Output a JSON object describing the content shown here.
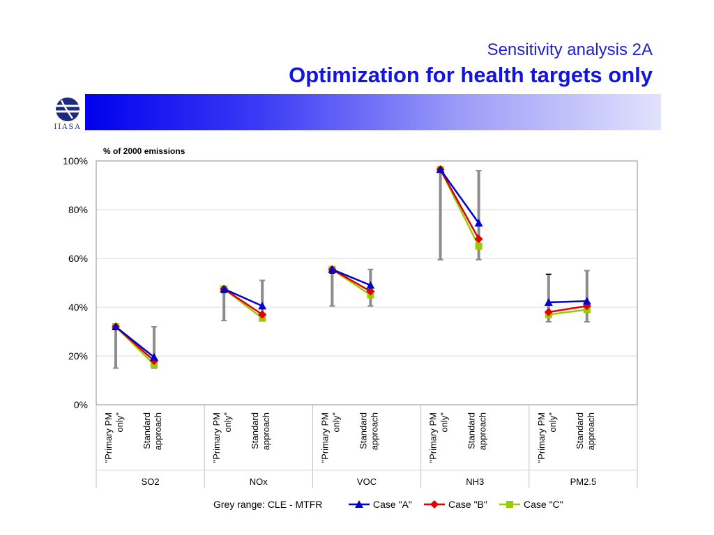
{
  "header": {
    "subtitle": "Sensitivity analysis 2A",
    "title": "Optimization for health targets only",
    "logo_text": "IIASA"
  },
  "colors": {
    "banner_start": "#0000ee",
    "banner_end": "#e2e2fc",
    "title": "#1414e0",
    "grey_range": "#8c8c8c",
    "case_a": "#0000cc",
    "case_b": "#e00000",
    "case_c": "#99cc00"
  },
  "chart_data": {
    "type": "line",
    "ylabel": "% of 2000 emissions",
    "ylim": [
      0,
      100
    ],
    "yticks": [
      0,
      20,
      40,
      60,
      80,
      100
    ],
    "ytick_labels": [
      "0%",
      "20%",
      "40%",
      "60%",
      "80%",
      "100%"
    ],
    "grid": true,
    "legend_position": "bottom",
    "groups": [
      "SO2",
      "NOx",
      "VOC",
      "NH3",
      "PM2.5"
    ],
    "categories": [
      "\"Primary PM only\"",
      "Standard approach"
    ],
    "category_lines": [
      [
        "\"Primary PM",
        "only\""
      ],
      [
        "Standard",
        "approach"
      ]
    ],
    "grey_range": {
      "name": "Grey range: CLE - MTFR",
      "low": [
        [
          15,
          15
        ],
        [
          34.5,
          34.5
        ],
        [
          40.5,
          40.5
        ],
        [
          59.5,
          59.5
        ],
        [
          34,
          34
        ]
      ],
      "high": [
        [
          32,
          32
        ],
        [
          46,
          51
        ],
        [
          54,
          55.5
        ],
        [
          96,
          96
        ],
        [
          53.5,
          55
        ]
      ]
    },
    "series": [
      {
        "name": "Case \"A\"",
        "marker": "triangle",
        "values": [
          [
            32,
            19.5
          ],
          [
            47.5,
            40.5
          ],
          [
            55.5,
            49
          ],
          [
            96.5,
            74.5
          ],
          [
            42,
            42.5
          ]
        ]
      },
      {
        "name": "Case \"B\"",
        "marker": "diamond",
        "values": [
          [
            32,
            18
          ],
          [
            47.5,
            37
          ],
          [
            55.5,
            46.5
          ],
          [
            96.5,
            68
          ],
          [
            38,
            40.5
          ]
        ]
      },
      {
        "name": "Case \"C\"",
        "marker": "square",
        "values": [
          [
            32,
            16.5
          ],
          [
            47.5,
            35.5
          ],
          [
            55.5,
            45
          ],
          [
            96.5,
            65
          ],
          [
            37,
            39
          ]
        ]
      }
    ]
  }
}
